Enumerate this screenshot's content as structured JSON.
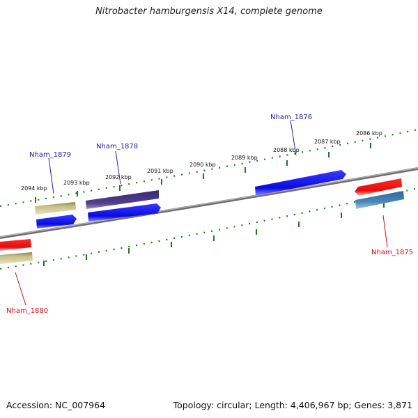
{
  "title": "Nitrobacter hamburgensis X14, complete genome",
  "footer": {
    "accession": "Accession: NC_007964",
    "topology": "Topology: circular; Length: 4,406,967 bp; Genes: 3,871"
  },
  "ticks": [
    "2094 kbp",
    "2093 kbp",
    "2092 kbp",
    "2091 kbp",
    "2090 kbp",
    "2089 kbp",
    "2088 kbp",
    "2087 kbp",
    "2086 kbp"
  ],
  "gene_labels": {
    "nham_1879": "Nham_1879",
    "nham_1878": "Nham_1878",
    "nham_1876": "Nham_1876",
    "nham_1875": "Nham_1875",
    "nham_1880": "Nham_1880"
  },
  "colors": {
    "backbone": "#7a7a7a",
    "tick": "#1a7a1a",
    "label_forward": "#1a1aa0",
    "label_reverse": "#cc1111",
    "gene_blue": "#1212e6",
    "gene_red": "#ee1111",
    "gene_olive": "#b8b070",
    "gene_purple": "#4a3a88",
    "gene_steel": "#3e78a8"
  }
}
